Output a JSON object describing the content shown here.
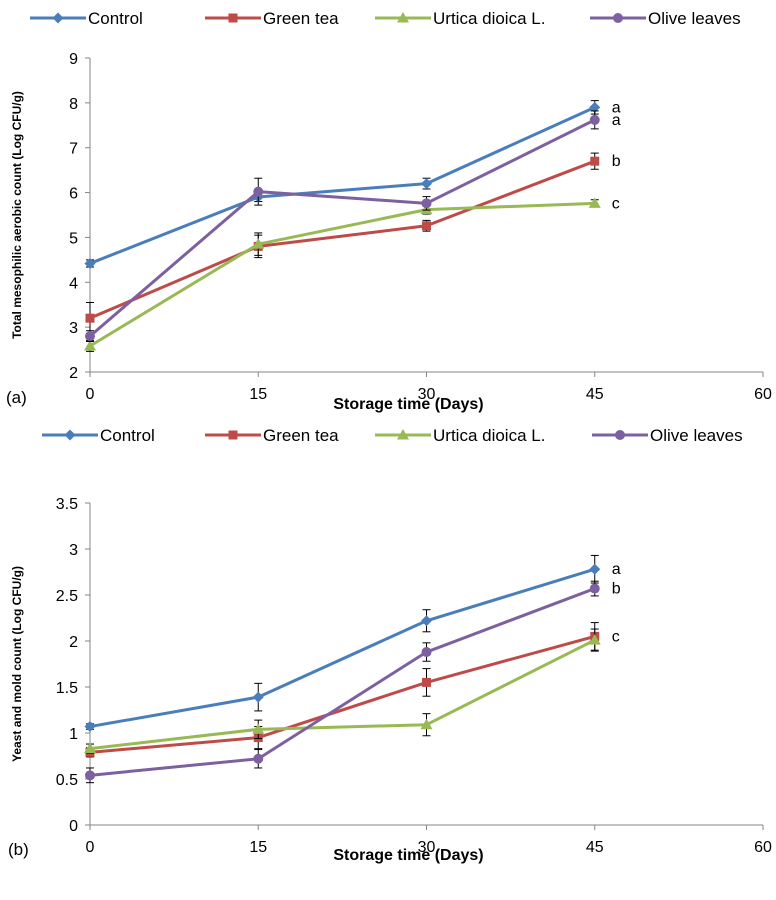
{
  "chart_data": [
    {
      "type": "line",
      "panel_label": "(a)",
      "xlabel": "Storage time (Days)",
      "ylabel": "Total mesophilic aerobic count (Log CFU/g)",
      "x": [
        0,
        15,
        30,
        45
      ],
      "xlim": [
        0,
        60
      ],
      "xticks": [
        "0",
        "15",
        "30",
        "45",
        "60"
      ],
      "ylim": [
        2,
        9
      ],
      "yticks": [
        "2",
        "3",
        "4",
        "5",
        "6",
        "7",
        "8",
        "9"
      ],
      "grid": false,
      "legend": "top",
      "series": [
        {
          "name": "Control",
          "values": [
            4.42,
            5.9,
            6.2,
            7.9
          ],
          "errors": [
            0.08,
            0.1,
            0.12,
            0.15
          ],
          "color": "#4a7ebb",
          "marker": "diamond",
          "end_label": "a"
        },
        {
          "name": "Green tea",
          "values": [
            3.2,
            4.8,
            5.26,
            6.7
          ],
          "errors": [
            0.35,
            0.25,
            0.12,
            0.18
          ],
          "color": "#be4b48",
          "marker": "square",
          "end_label": "b"
        },
        {
          "name": "Urtica dioica L.",
          "values": [
            2.58,
            4.85,
            5.62,
            5.76
          ],
          "errors": [
            0.12,
            0.25,
            0.1,
            0.08
          ],
          "color": "#98b954",
          "marker": "triangle",
          "end_label": "c"
        },
        {
          "name": "Olive leaves",
          "values": [
            2.8,
            6.02,
            5.76,
            7.62
          ],
          "errors": [
            0.12,
            0.3,
            0.15,
            0.2
          ],
          "color": "#7d60a0",
          "marker": "circle",
          "end_label": "a"
        }
      ]
    },
    {
      "type": "line",
      "panel_label": "(b)",
      "xlabel": "Storage time (Days)",
      "ylabel": "Yeast and mold count (Log CFU/g)",
      "x": [
        0,
        15,
        30,
        45
      ],
      "xlim": [
        0,
        60
      ],
      "xticks": [
        "0",
        "15",
        "30",
        "45",
        "60"
      ],
      "ylim": [
        0,
        3.5
      ],
      "yticks": [
        "0",
        "0.5",
        "1",
        "1.5",
        "2",
        "2.5",
        "3",
        "3.5"
      ],
      "grid": false,
      "legend": "top",
      "series": [
        {
          "name": "Control",
          "values": [
            1.07,
            1.39,
            2.22,
            2.78
          ],
          "errors": [
            0.03,
            0.15,
            0.12,
            0.15
          ],
          "color": "#4a7ebb",
          "marker": "diamond",
          "end_label": "a"
        },
        {
          "name": "Green tea",
          "values": [
            0.79,
            0.95,
            1.55,
            2.05
          ],
          "errors": [
            0.05,
            0.12,
            0.15,
            0.15
          ],
          "color": "#be4b48",
          "marker": "square",
          "end_label": "c"
        },
        {
          "name": "Urtica dioica L.",
          "values": [
            0.83,
            1.04,
            1.09,
            2.01
          ],
          "errors": [
            0.05,
            0.1,
            0.12,
            0.12
          ],
          "color": "#98b954",
          "marker": "triangle",
          "end_label": ""
        },
        {
          "name": "Olive leaves",
          "values": [
            0.54,
            0.72,
            1.88,
            2.57
          ],
          "errors": [
            0.08,
            0.1,
            0.1,
            0.08
          ],
          "color": "#7d60a0",
          "marker": "circle",
          "end_label": "b"
        }
      ]
    }
  ]
}
